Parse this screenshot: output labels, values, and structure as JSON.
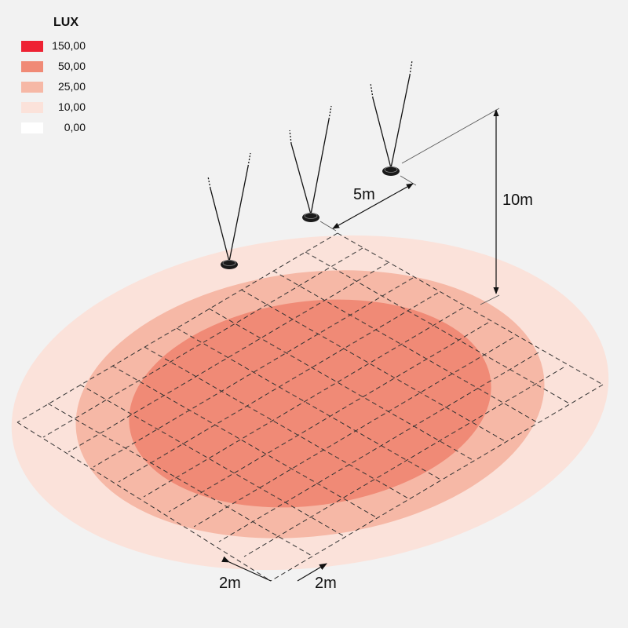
{
  "legend": {
    "title": "LUX",
    "items": [
      {
        "label": "150,00",
        "color": "#ee2233"
      },
      {
        "label": "50,00",
        "color": "#f08a76"
      },
      {
        "label": "25,00",
        "color": "#f6b8a6"
      },
      {
        "label": "10,00",
        "color": "#fbe2da"
      },
      {
        "label": "0,00",
        "color": "#ffffff"
      }
    ]
  },
  "dimensions": {
    "luminaire_spacing": "5m",
    "mounting_height": "10m",
    "grid_spacing_left": "2m",
    "grid_spacing_right": "2m"
  }
}
